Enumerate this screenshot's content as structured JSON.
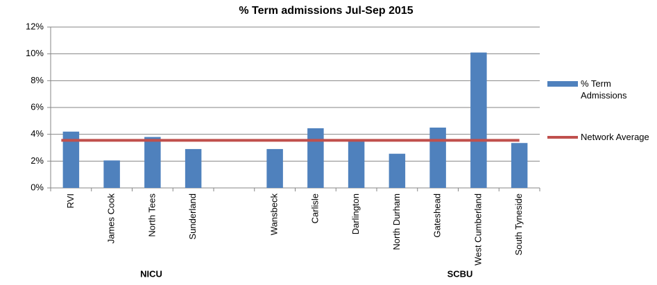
{
  "chart_data": {
    "type": "bar",
    "title": "% Term admissions Jul-Sep 2015",
    "categories": [
      "RVI",
      "James Cook",
      "North Tees",
      "Sunderland",
      null,
      "Wansbeck",
      "Carlisle",
      "Darlington",
      "North Durham",
      "Gateshead",
      "West Cumberland",
      "South Tyneside"
    ],
    "group_labels": [
      "NICU",
      "SCBU"
    ],
    "series": [
      {
        "name": "% Term Admissions",
        "type": "bar",
        "color": "#4f81bd",
        "values": [
          4.2,
          2.05,
          3.8,
          2.9,
          null,
          2.9,
          4.45,
          3.6,
          2.55,
          4.5,
          10.1,
          3.35
        ]
      },
      {
        "name": "Network Average",
        "type": "line",
        "color": "#c0504d",
        "values": [
          3.55,
          3.55,
          3.55,
          3.55,
          3.55,
          3.55,
          3.55,
          3.55,
          3.55,
          3.55,
          3.55,
          3.55
        ]
      }
    ],
    "ylim": [
      0,
      12
    ],
    "yticks": [
      {
        "value": 0,
        "label": "0%"
      },
      {
        "value": 2,
        "label": "2%"
      },
      {
        "value": 4,
        "label": "4%"
      },
      {
        "value": 6,
        "label": "6%"
      },
      {
        "value": 8,
        "label": "8%"
      },
      {
        "value": 10,
        "label": "10%"
      },
      {
        "value": 12,
        "label": "12%"
      }
    ],
    "grid": true,
    "legend": "right"
  }
}
